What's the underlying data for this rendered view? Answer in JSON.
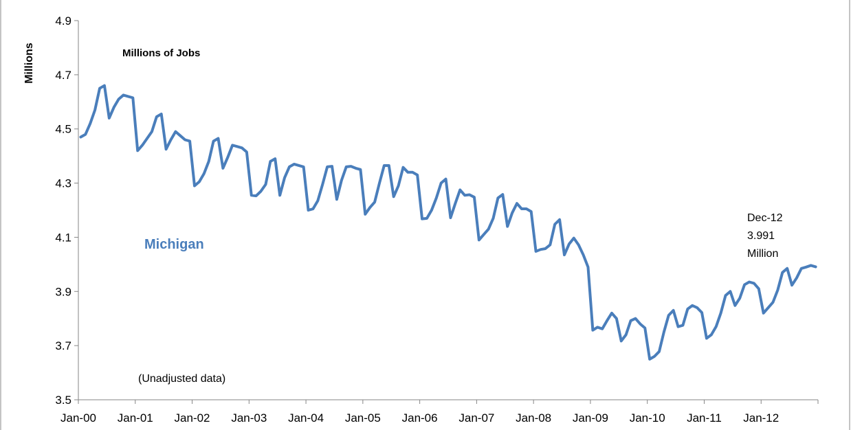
{
  "chart_data": {
    "type": "line",
    "title": "",
    "ylabel": "Millions",
    "xlabel": "",
    "ylim": [
      3.5,
      4.9
    ],
    "yticks": [
      3.5,
      3.7,
      3.9,
      4.1,
      4.3,
      4.5,
      4.7,
      4.9
    ],
    "ytick_labels": [
      "3.5",
      "3.7",
      "3.9",
      "4.1",
      "4.3",
      "4.5",
      "4.7",
      "4.9"
    ],
    "xtick_labels": [
      "Jan-00",
      "Jan-01",
      "Jan-02",
      "Jan-03",
      "Jan-04",
      "Jan-05",
      "Jan-06",
      "Jan-07",
      "Jan-08",
      "Jan-09",
      "Jan-10",
      "Jan-11",
      "Jan-12"
    ],
    "grid": false,
    "line_color": "#4a7ebb",
    "annotations": {
      "label_title": "Millions of Jobs",
      "series_label": "Michigan",
      "note": "(Unadjusted data)",
      "end_label_line1": "Dec-12",
      "end_label_line2": "3.991",
      "end_label_line3": "Million"
    },
    "series": [
      {
        "name": "Michigan",
        "values": [
          4.47,
          4.48,
          4.52,
          4.57,
          4.65,
          4.66,
          4.54,
          4.58,
          4.61,
          4.625,
          4.62,
          4.615,
          4.42,
          4.44,
          4.465,
          4.49,
          4.545,
          4.555,
          4.425,
          4.46,
          4.49,
          4.475,
          4.46,
          4.455,
          4.29,
          4.305,
          4.335,
          4.38,
          4.455,
          4.465,
          4.355,
          4.395,
          4.44,
          4.435,
          4.43,
          4.415,
          4.255,
          4.253,
          4.27,
          4.295,
          4.38,
          4.39,
          4.255,
          4.32,
          4.36,
          4.37,
          4.365,
          4.36,
          4.2,
          4.205,
          4.235,
          4.295,
          4.36,
          4.362,
          4.24,
          4.31,
          4.36,
          4.362,
          4.355,
          4.35,
          4.185,
          4.21,
          4.23,
          4.3,
          4.365,
          4.365,
          4.25,
          4.29,
          4.358,
          4.34,
          4.34,
          4.33,
          4.168,
          4.17,
          4.2,
          4.245,
          4.3,
          4.315,
          4.172,
          4.225,
          4.275,
          4.255,
          4.257,
          4.248,
          4.09,
          4.11,
          4.13,
          4.17,
          4.245,
          4.258,
          4.14,
          4.19,
          4.225,
          4.205,
          4.205,
          4.195,
          4.048,
          4.055,
          4.058,
          4.072,
          4.148,
          4.165,
          4.035,
          4.075,
          4.097,
          4.072,
          4.035,
          3.99,
          3.757,
          3.768,
          3.762,
          3.792,
          3.82,
          3.8,
          3.717,
          3.74,
          3.792,
          3.8,
          3.78,
          3.765,
          3.65,
          3.66,
          3.678,
          3.75,
          3.812,
          3.83,
          3.77,
          3.775,
          3.835,
          3.848,
          3.84,
          3.822,
          3.727,
          3.74,
          3.77,
          3.82,
          3.885,
          3.9,
          3.848,
          3.875,
          3.925,
          3.935,
          3.93,
          3.91,
          3.82,
          3.84,
          3.86,
          3.905,
          3.97,
          3.985,
          3.923,
          3.95,
          3.985,
          3.99,
          3.996,
          3.991
        ]
      }
    ]
  }
}
